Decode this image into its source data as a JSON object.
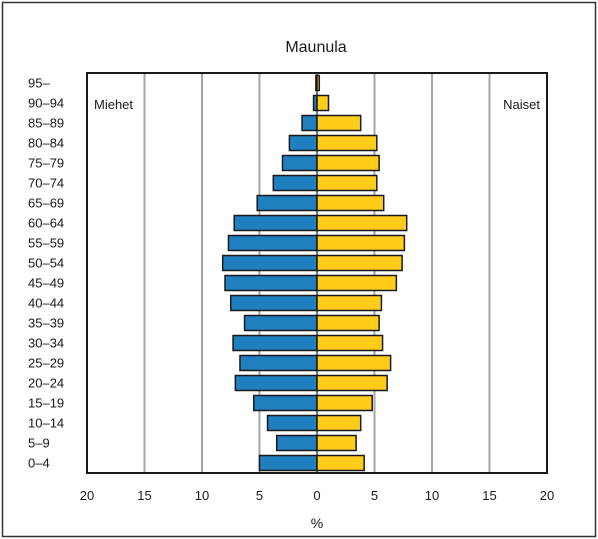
{
  "chart_data": {
    "type": "bar",
    "orientation": "horizontal",
    "title": "Maunula",
    "xlabel": "%",
    "xlim": [
      -20,
      20
    ],
    "x_ticks": [
      -20,
      -15,
      -10,
      -5,
      0,
      5,
      10,
      15,
      20
    ],
    "x_tick_labels": [
      "20",
      "15",
      "10",
      "5",
      "0",
      "5",
      "10",
      "15",
      "20"
    ],
    "grid": "vertical",
    "categories": [
      "0–4",
      "5–9",
      "10–14",
      "15–19",
      "20–24",
      "25–29",
      "30–34",
      "35–39",
      "40–44",
      "45–49",
      "50–54",
      "55–59",
      "60–64",
      "65–69",
      "70–74",
      "75–79",
      "80–84",
      "85–89",
      "90–94",
      "95–"
    ],
    "series": [
      {
        "name": "Miehet",
        "side": "left",
        "color": "#1f7fbf",
        "values": [
          5.0,
          3.5,
          4.3,
          5.5,
          7.1,
          6.7,
          7.3,
          6.3,
          7.5,
          8.0,
          8.2,
          7.7,
          7.2,
          5.2,
          3.8,
          3.0,
          2.4,
          1.3,
          0.3,
          0.1
        ]
      },
      {
        "name": "Naiset",
        "side": "right",
        "color": "#ffcc1a",
        "values": [
          4.1,
          3.4,
          3.8,
          4.8,
          6.1,
          6.4,
          5.7,
          5.4,
          5.6,
          6.9,
          7.4,
          7.6,
          7.8,
          5.8,
          5.2,
          5.4,
          5.2,
          3.8,
          1.0,
          0.2
        ]
      }
    ],
    "legend": {
      "left_label": "Miehet",
      "right_label": "Naiset",
      "placement": "inside top corners"
    }
  }
}
